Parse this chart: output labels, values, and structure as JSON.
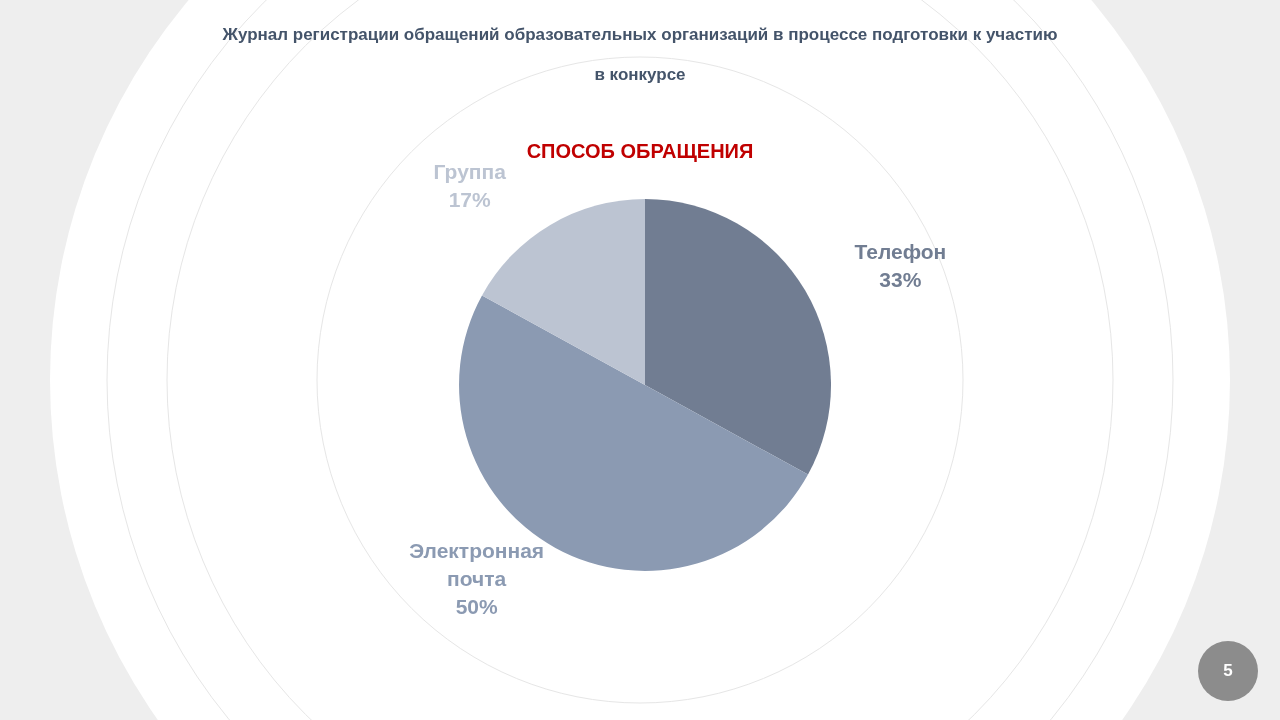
{
  "chart_data": {
    "type": "pie",
    "title": "Журнал регистрации обращений образовательных организаций в процессе подготовки к участию в конкурсе",
    "subtitle": "СПОСОБ ОБРАЩЕНИЯ",
    "categories": [
      "Телефон",
      "Электронная почта",
      "Группа"
    ],
    "values": [
      33,
      50,
      17
    ],
    "value_labels": [
      "33%",
      "50%",
      "17%"
    ],
    "colors": [
      "#717d92",
      "#8b9ab2",
      "#bcc4d2"
    ],
    "annotations": [
      "5"
    ]
  }
}
